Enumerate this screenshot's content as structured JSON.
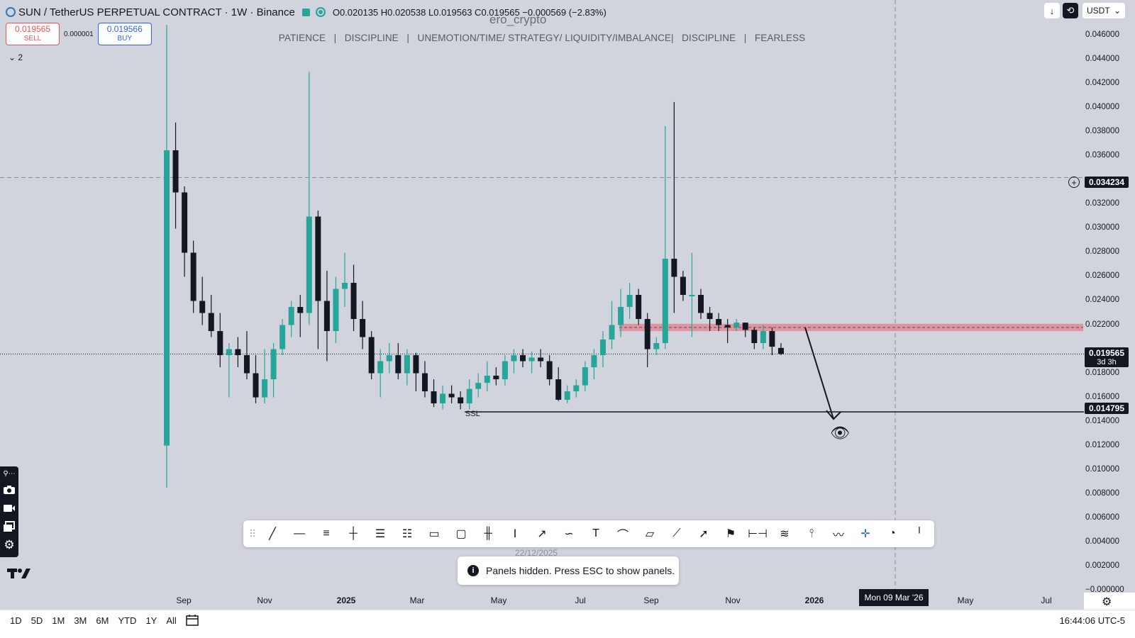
{
  "header": {
    "symbol_title": "SUN / TetherUS PERPETUAL CONTRACT · 1W · Binance",
    "ohlc": "O0.020135 H0.020538 L0.019563 C0.019565 −0.000569 (−2.83%)"
  },
  "trade": {
    "sell_price": "0.019565",
    "sell_label": "SELL",
    "spread": "0.000001",
    "buy_price": "0.019566",
    "buy_label": "BUY"
  },
  "watermark": "ero_crypto",
  "motto": "PATIENCE   |   DISCIPLINE   |   UNEMOTION/TIME/ STRATEGY/ LIQUIDITY/IMBALANCE|   DISCIPLINE   |   FEARLESS",
  "indicator_count": "2",
  "top_right": {
    "currency": "USDT"
  },
  "price_scale": {
    "labels": [
      "0.046000",
      "0.044000",
      "0.042000",
      "0.040000",
      "0.038000",
      "0.036000",
      "0.032000",
      "0.030000",
      "0.028000",
      "0.026000",
      "0.024000",
      "0.022000",
      "0.018000",
      "0.016000",
      "0.014000",
      "0.012000",
      "0.010000",
      "0.008000",
      "0.006000",
      "0.004000",
      "0.002000",
      "−0.000000"
    ],
    "crosshair_price": "0.034234",
    "last_price": "0.019565",
    "countdown": "3d 3h",
    "ssl_price": "0.014795"
  },
  "time_scale": {
    "labels": [
      "Sep",
      "Nov",
      "2025",
      "Mar",
      "May",
      "Jul",
      "Sep",
      "Nov",
      "2026",
      "May",
      "Jul"
    ],
    "crosshair_date": "Mon 09 Mar '26"
  },
  "annotations": {
    "ssl_label": "SSL",
    "date_watermark": "22/12/2025"
  },
  "toast": {
    "message": "Panels hidden. Press ESC to show panels."
  },
  "bottom_bar": {
    "ranges": [
      "1D",
      "5D",
      "1M",
      "3M",
      "6M",
      "YTD",
      "1Y",
      "All"
    ],
    "clock": "16:44:06 UTC-5"
  },
  "colors": {
    "bull": "#26a69a",
    "bear": "#131722",
    "zone": "#e08a95",
    "background": "#d1d4dc"
  },
  "drawing_tools": [
    "trend-line-icon",
    "horizontal-ray-icon",
    "parallel-channel-icon",
    "horizontal-line-icon",
    "fib-retracement-icon",
    "fib-extension-icon",
    "callout-icon",
    "rectangle-icon",
    "long-position-icon",
    "price-range-icon",
    "arrow-icon",
    "brush-icon",
    "text-icon",
    "curve-icon",
    "comment-icon",
    "path-icon",
    "arrow-marker-icon",
    "flag-icon",
    "date-price-range-icon",
    "gann-fan-icon",
    "pitchfork-icon",
    "elliott-wave-icon",
    "crosshair-icon",
    "pencil-icon",
    "cursor-icon"
  ],
  "chart_data": {
    "type": "candlestick",
    "timeframe": "1W",
    "ylim": [
      -0.0002,
      0.0472
    ],
    "ohlc": [
      [
        0.012,
        0.0469,
        0.0085,
        0.0365
      ],
      [
        0.0365,
        0.0388,
        0.03,
        0.033
      ],
      [
        0.033,
        0.0335,
        0.026,
        0.028
      ],
      [
        0.028,
        0.029,
        0.023,
        0.024
      ],
      [
        0.024,
        0.026,
        0.022,
        0.023
      ],
      [
        0.023,
        0.0245,
        0.021,
        0.0215
      ],
      [
        0.0215,
        0.023,
        0.0185,
        0.0195
      ],
      [
        0.0195,
        0.0205,
        0.016,
        0.02
      ],
      [
        0.02,
        0.021,
        0.0185,
        0.0195
      ],
      [
        0.0195,
        0.0215,
        0.0175,
        0.018
      ],
      [
        0.018,
        0.0195,
        0.0155,
        0.016
      ],
      [
        0.016,
        0.02,
        0.0155,
        0.0175
      ],
      [
        0.0175,
        0.0205,
        0.016,
        0.02
      ],
      [
        0.02,
        0.0225,
        0.0195,
        0.022
      ],
      [
        0.022,
        0.024,
        0.021,
        0.0235
      ],
      [
        0.0235,
        0.0245,
        0.021,
        0.023
      ],
      [
        0.023,
        0.043,
        0.022,
        0.031
      ],
      [
        0.031,
        0.0315,
        0.02,
        0.024
      ],
      [
        0.024,
        0.0265,
        0.019,
        0.0215
      ],
      [
        0.0215,
        0.026,
        0.0205,
        0.025
      ],
      [
        0.025,
        0.028,
        0.0235,
        0.0255
      ],
      [
        0.0255,
        0.027,
        0.0215,
        0.0225
      ],
      [
        0.0225,
        0.024,
        0.02,
        0.021
      ],
      [
        0.021,
        0.0215,
        0.0175,
        0.018
      ],
      [
        0.018,
        0.02,
        0.016,
        0.019
      ],
      [
        0.019,
        0.0205,
        0.018,
        0.0195
      ],
      [
        0.0195,
        0.0205,
        0.0175,
        0.018
      ],
      [
        0.018,
        0.02,
        0.017,
        0.0195
      ],
      [
        0.0195,
        0.0197,
        0.0165,
        0.018
      ],
      [
        0.018,
        0.019,
        0.016,
        0.0165
      ],
      [
        0.0165,
        0.0175,
        0.0152,
        0.0155
      ],
      [
        0.0155,
        0.017,
        0.015,
        0.0163
      ],
      [
        0.0163,
        0.017,
        0.0155,
        0.016
      ],
      [
        0.016,
        0.0165,
        0.015,
        0.0155
      ],
      [
        0.0155,
        0.0175,
        0.015,
        0.0167
      ],
      [
        0.0167,
        0.018,
        0.016,
        0.0172
      ],
      [
        0.0172,
        0.019,
        0.0165,
        0.0178
      ],
      [
        0.0178,
        0.0185,
        0.017,
        0.0175
      ],
      [
        0.0175,
        0.0195,
        0.017,
        0.019
      ],
      [
        0.019,
        0.02,
        0.018,
        0.0195
      ],
      [
        0.0195,
        0.02,
        0.0185,
        0.019
      ],
      [
        0.019,
        0.0198,
        0.018,
        0.0193
      ],
      [
        0.0193,
        0.02,
        0.0185,
        0.019
      ],
      [
        0.019,
        0.0195,
        0.017,
        0.0175
      ],
      [
        0.0175,
        0.0185,
        0.0157,
        0.0158
      ],
      [
        0.0158,
        0.017,
        0.0155,
        0.0165
      ],
      [
        0.0165,
        0.0175,
        0.016,
        0.017
      ],
      [
        0.017,
        0.019,
        0.0165,
        0.0185
      ],
      [
        0.0185,
        0.02,
        0.0175,
        0.0195
      ],
      [
        0.0195,
        0.0215,
        0.0185,
        0.0208
      ],
      [
        0.0208,
        0.024,
        0.02,
        0.022
      ],
      [
        0.022,
        0.025,
        0.021,
        0.0235
      ],
      [
        0.0235,
        0.0255,
        0.0225,
        0.0245
      ],
      [
        0.0245,
        0.025,
        0.022,
        0.0225
      ],
      [
        0.0225,
        0.023,
        0.0185,
        0.02
      ],
      [
        0.02,
        0.021,
        0.0195,
        0.0205
      ],
      [
        0.0205,
        0.0385,
        0.02,
        0.0275
      ],
      [
        0.0275,
        0.0405,
        0.023,
        0.026
      ],
      [
        0.026,
        0.0265,
        0.024,
        0.0245
      ],
      [
        0.0245,
        0.028,
        0.021,
        0.0245
      ],
      [
        0.0245,
        0.025,
        0.0225,
        0.023
      ],
      [
        0.023,
        0.0235,
        0.0215,
        0.0225
      ],
      [
        0.0225,
        0.023,
        0.0215,
        0.022
      ],
      [
        0.022,
        0.0225,
        0.0205,
        0.0218
      ],
      [
        0.0218,
        0.0225,
        0.0215,
        0.0222
      ],
      [
        0.0222,
        0.0222,
        0.021,
        0.0216
      ],
      [
        0.0216,
        0.0218,
        0.02,
        0.0205
      ],
      [
        0.0205,
        0.022,
        0.02,
        0.0215
      ],
      [
        0.0215,
        0.0218,
        0.0195,
        0.0202
      ],
      [
        0.0201,
        0.0205,
        0.0195,
        0.0196
      ]
    ],
    "zone": {
      "top": 0.0221,
      "bottom": 0.0215
    },
    "ssl_level": 0.014795,
    "crosshair_y": 0.034234
  }
}
